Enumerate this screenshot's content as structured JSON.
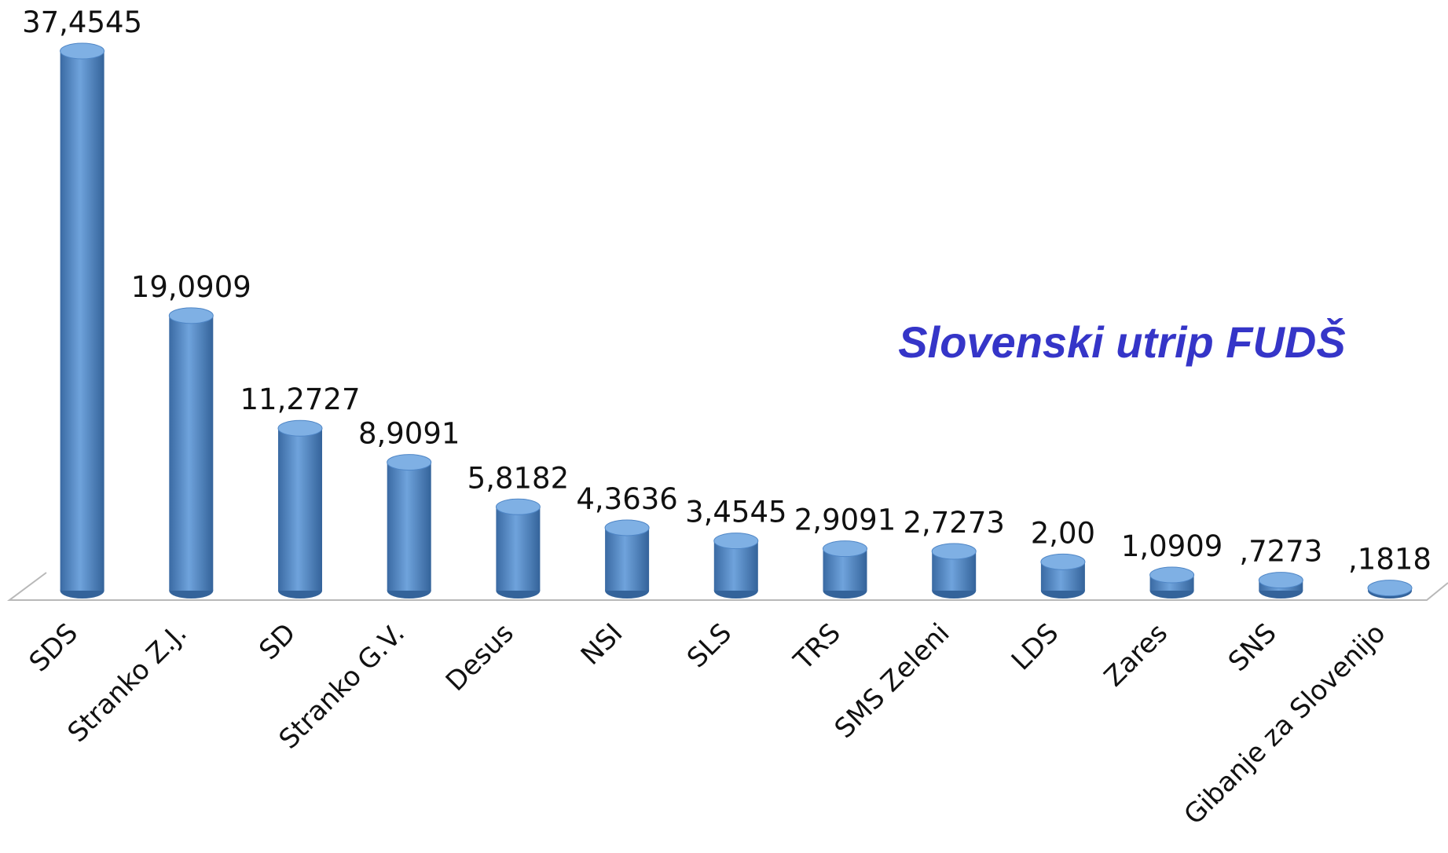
{
  "chart_data": {
    "type": "bar",
    "title": "Slovenski utrip FUDŠ",
    "categories": [
      "SDS",
      "Stranko Z.J.",
      "SD",
      "Stranko G.V.",
      "Desus",
      "NSI",
      "SLS",
      "TRS",
      "SMS Zeleni",
      "LDS",
      "Zares",
      "SNS",
      "Gibanje za Slovenijo"
    ],
    "values": [
      37.4545,
      19.0909,
      11.2727,
      8.9091,
      5.8182,
      4.3636,
      3.4545,
      2.9091,
      2.7273,
      2.0,
      1.0909,
      0.7273,
      0.1818
    ],
    "value_labels": [
      "37,4545",
      "19,0909",
      "11,2727",
      "8,9091",
      "5,8182",
      "4,3636",
      "3,4545",
      "2,9091",
      "2,7273",
      "2,00",
      "1,0909",
      ",7273",
      ",1818"
    ],
    "color": "#4f86c6"
  }
}
